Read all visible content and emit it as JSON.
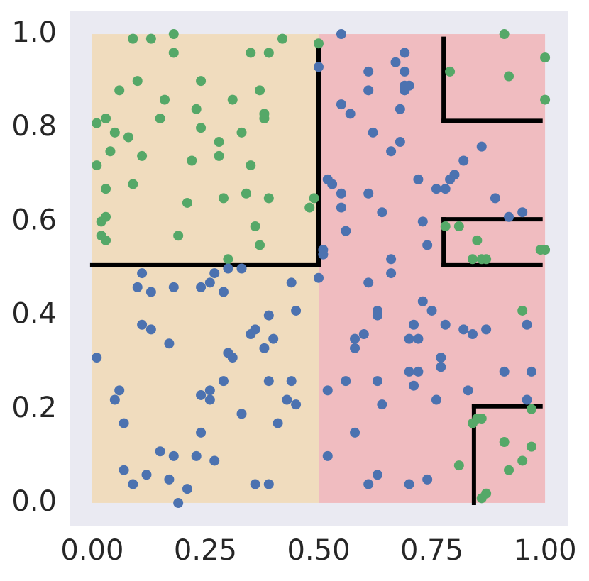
{
  "chart_data": {
    "type": "scatter",
    "xlim": [
      -0.05,
      1.05
    ],
    "ylim": [
      -0.05,
      1.05
    ],
    "xticks": [
      {
        "value": 0,
        "label": "0.00"
      },
      {
        "value": 0.25,
        "label": "0.25"
      },
      {
        "value": 0.5,
        "label": "0.50"
      },
      {
        "value": 0.75,
        "label": "0.75"
      },
      {
        "value": 1,
        "label": "1.00"
      }
    ],
    "yticks": [
      {
        "value": 0,
        "label": "0.0"
      },
      {
        "value": 0.2,
        "label": "0.2"
      },
      {
        "value": 0.4,
        "label": "0.4"
      },
      {
        "value": 0.6,
        "label": "0.6"
      },
      {
        "value": 0.8,
        "label": "0.8"
      },
      {
        "value": 1,
        "label": "1.0"
      }
    ],
    "grid": false,
    "background": "#eaeaf2",
    "regions": [
      {
        "x": [
          0,
          0.5
        ],
        "y": [
          0,
          1
        ],
        "color": "#f0dcbe"
      },
      {
        "x": [
          0.5,
          1
        ],
        "y": [
          0,
          1
        ],
        "color": "#f0bcc0"
      }
    ],
    "boundary_color": "#000000",
    "boundaries": [
      [
        0,
        0.507,
        0.5,
        0.507
      ],
      [
        0.5,
        0.507,
        0.5,
        0.98
      ],
      [
        0.776,
        0.815,
        0.776,
        0.99
      ],
      [
        0.776,
        0.815,
        0.99,
        0.815
      ],
      [
        0.776,
        0.507,
        0.776,
        0.605
      ],
      [
        0.776,
        0.605,
        0.99,
        0.605
      ],
      [
        0.776,
        0.507,
        0.99,
        0.507
      ],
      [
        0.843,
        0,
        0.843,
        0.206
      ],
      [
        0.843,
        0.206,
        0.99,
        0.206
      ]
    ],
    "series": [
      {
        "color": "#55a868",
        "x": [
          0.09,
          0.13,
          0.18,
          0.18,
          0.35,
          0.39,
          0.42,
          0.5,
          0.1,
          0.06,
          0.16,
          0.24,
          0.37,
          0.31,
          0.01,
          0.03,
          0.05,
          0.08,
          0.04,
          0.11,
          0.15,
          0.23,
          0.24,
          0.28,
          0.33,
          0.38,
          0.38,
          0.01,
          0.22,
          0.28,
          0.35,
          0.03,
          0.09,
          0.21,
          0.29,
          0.34,
          0.39,
          0.02,
          0.03,
          0.02,
          0.03,
          0.19,
          0.36,
          0.37,
          0.48,
          0.49,
          0.3,
          0.79,
          0.91,
          0.92,
          1.0,
          1.0,
          0.78,
          0.81,
          0.85,
          0.84,
          0.86,
          0.87,
          0.99,
          1.0,
          0.95,
          0.97,
          0.81,
          0.91,
          0.97,
          0.95,
          0.92,
          0.84,
          0.85,
          0.86,
          0.86,
          0.87
        ],
        "values": [
          0.99,
          0.99,
          1.0,
          0.96,
          0.96,
          0.96,
          0.99,
          0.98,
          0.9,
          0.88,
          0.86,
          0.9,
          0.88,
          0.86,
          0.81,
          0.82,
          0.79,
          0.78,
          0.75,
          0.74,
          0.82,
          0.84,
          0.8,
          0.77,
          0.79,
          0.83,
          0.82,
          0.72,
          0.73,
          0.74,
          0.72,
          0.67,
          0.68,
          0.64,
          0.65,
          0.66,
          0.65,
          0.6,
          0.61,
          0.57,
          0.56,
          0.57,
          0.59,
          0.55,
          0.63,
          0.65,
          0.52,
          0.92,
          1.0,
          0.91,
          0.95,
          0.86,
          0.59,
          0.59,
          0.56,
          0.52,
          0.52,
          0.52,
          0.54,
          0.54,
          0.41,
          0.2,
          0.08,
          0.13,
          0.12,
          0.09,
          0.07,
          0.17,
          0.18,
          0.18,
          0.01,
          0.02
        ]
      },
      {
        "color": "#4c72b0",
        "x": [
          0.55,
          0.5,
          0.61,
          0.55,
          0.57,
          0.61,
          0.62,
          0.66,
          0.68,
          0.68,
          0.67,
          0.69,
          0.69,
          0.69,
          0.69,
          0.7,
          0.52,
          0.53,
          0.55,
          0.55,
          0.56,
          0.61,
          0.64,
          0.72,
          0.76,
          0.78,
          0.79,
          0.8,
          0.82,
          0.86,
          0.89,
          0.92,
          0.95,
          0.73,
          0.74,
          0.51,
          0.51,
          0.5,
          0.61,
          0.63,
          0.63,
          0.66,
          0.66,
          0.58,
          0.6,
          0.58,
          0.56,
          0.58,
          0.63,
          0.64,
          0.52,
          0.52,
          0.63,
          0.61,
          0.7,
          0.71,
          0.72,
          0.73,
          0.75,
          0.78,
          0.82,
          0.84,
          0.87,
          0.72,
          0.7,
          0.71,
          0.77,
          0.77,
          0.76,
          0.83,
          0.74,
          0.7,
          0.91,
          0.97,
          0.96,
          0.96,
          0.11,
          0.1,
          0.13,
          0.18,
          0.24,
          0.26,
          0.27,
          0.29,
          0.33,
          0.3,
          0.44,
          0.45,
          0.39,
          0.36,
          0.35,
          0.38,
          0.4,
          0.3,
          0.31,
          0.29,
          0.26,
          0.24,
          0.26,
          0.39,
          0.44,
          0.43,
          0.45,
          0.41,
          0.33,
          0.24,
          0.11,
          0.13,
          0.17,
          0.01,
          0.06,
          0.05,
          0.07,
          0.07,
          0.15,
          0.18,
          0.23,
          0.27,
          0.09,
          0.12,
          0.17,
          0.21,
          0.19,
          0.36,
          0.39
        ],
        "values": [
          1.0,
          0.93,
          0.92,
          0.85,
          0.83,
          0.88,
          0.79,
          0.75,
          0.77,
          0.84,
          0.94,
          0.96,
          0.92,
          0.89,
          0.88,
          0.89,
          0.69,
          0.68,
          0.66,
          0.63,
          0.58,
          0.66,
          0.62,
          0.69,
          0.67,
          0.67,
          0.69,
          0.7,
          0.73,
          0.76,
          0.65,
          0.61,
          0.62,
          0.6,
          0.55,
          0.54,
          0.53,
          0.48,
          0.47,
          0.41,
          0.4,
          0.49,
          0.52,
          0.35,
          0.36,
          0.33,
          0.26,
          0.15,
          0.26,
          0.21,
          0.24,
          0.1,
          0.06,
          0.04,
          0.35,
          0.38,
          0.35,
          0.43,
          0.41,
          0.38,
          0.37,
          0.36,
          0.37,
          0.28,
          0.28,
          0.25,
          0.29,
          0.31,
          0.22,
          0.24,
          0.05,
          0.04,
          0.28,
          0.28,
          0.38,
          0.22,
          0.49,
          0.46,
          0.45,
          0.46,
          0.46,
          0.47,
          0.49,
          0.45,
          0.5,
          0.5,
          0.47,
          0.41,
          0.4,
          0.37,
          0.36,
          0.33,
          0.35,
          0.32,
          0.31,
          0.26,
          0.24,
          0.23,
          0.22,
          0.26,
          0.26,
          0.22,
          0.21,
          0.17,
          0.19,
          0.15,
          0.38,
          0.37,
          0.34,
          0.31,
          0.24,
          0.22,
          0.17,
          0.07,
          0.11,
          0.1,
          0.1,
          0.09,
          0.04,
          0.06,
          0.05,
          0.03,
          0.0,
          0.04,
          0.04
        ]
      }
    ]
  }
}
